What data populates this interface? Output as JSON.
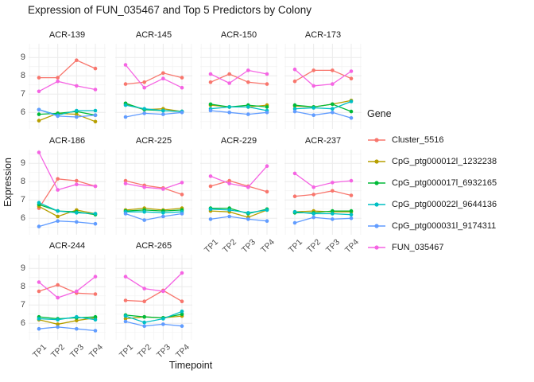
{
  "title": "Expression of FUN_035467 and Top 5 Predictors by Colony",
  "axis": {
    "x_title": "Timepoint",
    "y_title": "Expression"
  },
  "legend": {
    "title": "Gene"
  },
  "chart_data": {
    "type": "line",
    "title": "Expression of FUN_035467 and Top 5 Predictors by Colony",
    "xlabel": "Timepoint",
    "ylabel": "Expression",
    "x_categories": [
      "TP1",
      "TP2",
      "TP3",
      "TP4"
    ],
    "y_ticks": [
      6,
      7,
      8,
      9
    ],
    "y_range": [
      5.1,
      9.75
    ],
    "grid": "on",
    "legend_position": "right",
    "series_order": [
      "Cluster_5516",
      "CpG_ptg000012l_1232238",
      "CpG_ptg000017l_6932165",
      "CpG_ptg000022l_9644136",
      "CpG_ptg000031l_9174311",
      "FUN_035467"
    ],
    "series_colors": {
      "Cluster_5516": "#F8766D",
      "CpG_ptg000012l_1232238": "#B79F00",
      "CpG_ptg000017l_6932165": "#00BA38",
      "CpG_ptg000022l_9644136": "#00BFC4",
      "CpG_ptg000031l_9174311": "#619CFF",
      "FUN_035467": "#F564E3"
    },
    "facets": [
      {
        "label": "ACR-139",
        "series": {
          "Cluster_5516": [
            7.9,
            7.9,
            8.85,
            8.4
          ],
          "CpG_ptg000012l_1232238": [
            5.55,
            5.95,
            5.9,
            5.5
          ],
          "CpG_ptg000017l_6932165": [
            5.9,
            5.95,
            6.05,
            5.85
          ],
          "CpG_ptg000022l_9644136": [
            6.15,
            5.85,
            6.1,
            6.1
          ],
          "CpG_ptg000031l_9174311": [
            6.15,
            5.8,
            5.75,
            5.85
          ],
          "FUN_035467": [
            7.15,
            7.7,
            7.45,
            7.25
          ]
        }
      },
      {
        "label": "ACR-145",
        "series": {
          "Cluster_5516": [
            7.55,
            7.65,
            8.15,
            7.9
          ],
          "CpG_ptg000012l_1232238": [
            6.45,
            6.15,
            6.2,
            6.05
          ],
          "CpG_ptg000017l_6932165": [
            6.5,
            6.15,
            6.1,
            6.05
          ],
          "CpG_ptg000022l_9644136": [
            6.4,
            6.2,
            6.1,
            6.05
          ],
          "CpG_ptg000031l_9174311": [
            5.75,
            5.95,
            5.9,
            6.0
          ],
          "FUN_035467": [
            8.6,
            7.35,
            7.85,
            7.35
          ]
        }
      },
      {
        "label": "ACR-150",
        "series": {
          "Cluster_5516": [
            7.65,
            8.1,
            7.65,
            7.55
          ],
          "CpG_ptg000012l_1232238": [
            6.4,
            6.3,
            6.3,
            6.4
          ],
          "CpG_ptg000017l_6932165": [
            6.45,
            6.3,
            6.4,
            6.3
          ],
          "CpG_ptg000022l_9644136": [
            6.2,
            6.3,
            6.3,
            6.1
          ],
          "CpG_ptg000031l_9174311": [
            6.1,
            6.0,
            5.9,
            6.0
          ],
          "FUN_035467": [
            8.1,
            7.6,
            8.3,
            8.1
          ]
        }
      },
      {
        "label": "ACR-173",
        "series": {
          "Cluster_5516": [
            7.7,
            8.3,
            8.3,
            7.85
          ],
          "CpG_ptg000012l_1232238": [
            6.35,
            6.3,
            6.45,
            6.65
          ],
          "CpG_ptg000017l_6932165": [
            6.4,
            6.3,
            6.45,
            6.05
          ],
          "CpG_ptg000022l_9644136": [
            6.2,
            6.25,
            6.2,
            6.6
          ],
          "CpG_ptg000031l_9174311": [
            6.05,
            5.85,
            6.0,
            5.7
          ],
          "FUN_035467": [
            8.35,
            7.45,
            7.55,
            8.25
          ]
        }
      },
      {
        "label": "ACR-186",
        "series": {
          "Cluster_5516": [
            6.55,
            8.15,
            8.05,
            7.75
          ],
          "CpG_ptg000012l_1232238": [
            6.65,
            6.1,
            6.45,
            6.25
          ],
          "CpG_ptg000017l_6932165": [
            6.75,
            6.4,
            6.35,
            6.2
          ],
          "CpG_ptg000022l_9644136": [
            6.85,
            6.4,
            6.3,
            6.25
          ],
          "CpG_ptg000031l_9174311": [
            5.55,
            5.85,
            5.8,
            5.7
          ],
          "FUN_035467": [
            9.6,
            7.55,
            7.85,
            7.75
          ]
        }
      },
      {
        "label": "ACR-225",
        "series": {
          "Cluster_5516": [
            8.05,
            7.8,
            7.65,
            7.3
          ],
          "CpG_ptg000012l_1232238": [
            6.45,
            6.55,
            6.45,
            6.55
          ],
          "CpG_ptg000017l_6932165": [
            6.4,
            6.45,
            6.4,
            6.45
          ],
          "CpG_ptg000022l_9644136": [
            6.35,
            6.35,
            6.3,
            6.35
          ],
          "CpG_ptg000031l_9174311": [
            6.25,
            5.9,
            6.1,
            6.25
          ],
          "FUN_035467": [
            7.9,
            7.7,
            7.6,
            7.95
          ]
        }
      },
      {
        "label": "ACR-229",
        "series": {
          "Cluster_5516": [
            7.75,
            8.05,
            7.75,
            7.45
          ],
          "CpG_ptg000012l_1232238": [
            6.4,
            6.35,
            6.05,
            6.45
          ],
          "CpG_ptg000017l_6932165": [
            6.55,
            6.55,
            6.25,
            6.5
          ],
          "CpG_ptg000022l_9644136": [
            6.5,
            6.45,
            6.3,
            6.45
          ],
          "CpG_ptg000031l_9174311": [
            5.95,
            6.1,
            5.95,
            5.85
          ],
          "FUN_035467": [
            8.3,
            7.9,
            7.7,
            8.85
          ]
        }
      },
      {
        "label": "ACR-237",
        "series": {
          "Cluster_5516": [
            7.2,
            7.3,
            7.5,
            7.25
          ],
          "CpG_ptg000012l_1232238": [
            6.35,
            6.4,
            6.35,
            6.35
          ],
          "CpG_ptg000017l_6932165": [
            6.3,
            6.3,
            6.4,
            6.4
          ],
          "CpG_ptg000022l_9644136": [
            6.35,
            6.25,
            6.25,
            6.2
          ],
          "CpG_ptg000031l_9174311": [
            5.75,
            6.05,
            5.95,
            6.0
          ],
          "FUN_035467": [
            8.45,
            7.7,
            7.95,
            8.05
          ]
        }
      },
      {
        "label": "ACR-244",
        "series": {
          "Cluster_5516": [
            7.75,
            8.1,
            7.65,
            7.6
          ],
          "CpG_ptg000012l_1232238": [
            6.2,
            5.95,
            6.15,
            6.3
          ],
          "CpG_ptg000017l_6932165": [
            6.35,
            6.25,
            6.3,
            6.35
          ],
          "CpG_ptg000022l_9644136": [
            6.25,
            6.2,
            6.35,
            6.2
          ],
          "CpG_ptg000031l_9174311": [
            5.7,
            5.8,
            5.7,
            5.6
          ],
          "FUN_035467": [
            8.25,
            7.4,
            7.75,
            8.55
          ]
        }
      },
      {
        "label": "ACR-265",
        "series": {
          "Cluster_5516": [
            7.25,
            7.2,
            7.8,
            7.2
          ],
          "CpG_ptg000012l_1232238": [
            6.25,
            6.35,
            6.3,
            6.4
          ],
          "CpG_ptg000017l_6932165": [
            6.45,
            6.35,
            6.3,
            6.5
          ],
          "CpG_ptg000022l_9644136": [
            6.4,
            6.05,
            6.25,
            6.65
          ],
          "CpG_ptg000031l_9174311": [
            6.1,
            5.85,
            5.95,
            5.85
          ],
          "FUN_035467": [
            8.55,
            7.9,
            7.75,
            8.75
          ]
        }
      }
    ]
  }
}
